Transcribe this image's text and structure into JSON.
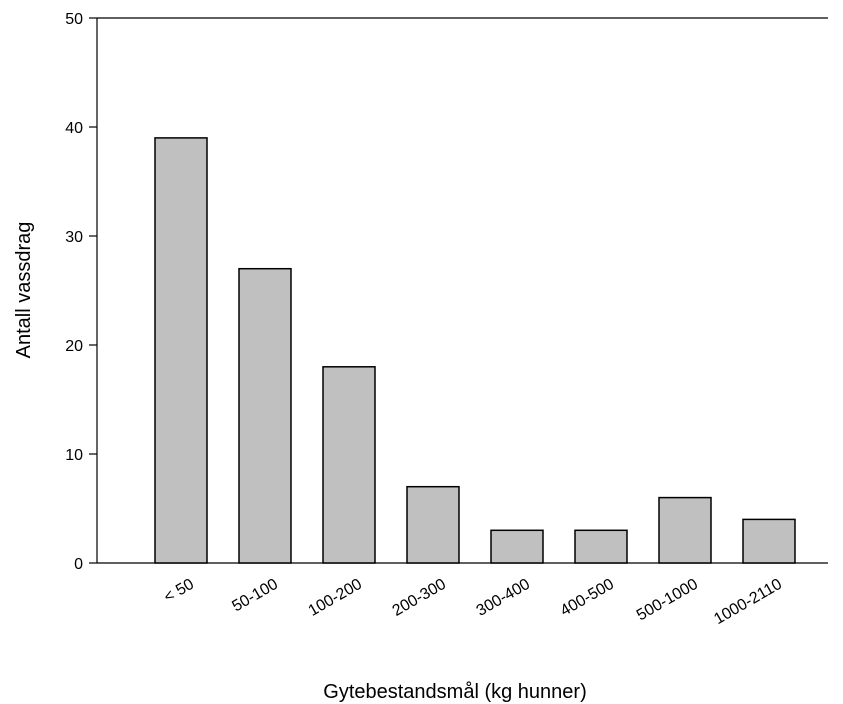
{
  "chart_data": {
    "type": "bar",
    "title": "",
    "xlabel": "Gytebestandsmål (kg hunner)",
    "ylabel": "Antall vassdrag",
    "categories": [
      "< 50",
      "50-100",
      "100-200",
      "200-300",
      "300-400",
      "400-500",
      "500-1000",
      "1000-2110"
    ],
    "values": [
      39,
      27,
      18,
      7,
      3,
      3,
      6,
      4
    ],
    "ylim": [
      0,
      50
    ],
    "yticks": [
      0,
      10,
      20,
      30,
      40,
      50
    ],
    "grid": false,
    "bar_color": "#c0c0c0",
    "bar_edge_color": "#000000"
  }
}
